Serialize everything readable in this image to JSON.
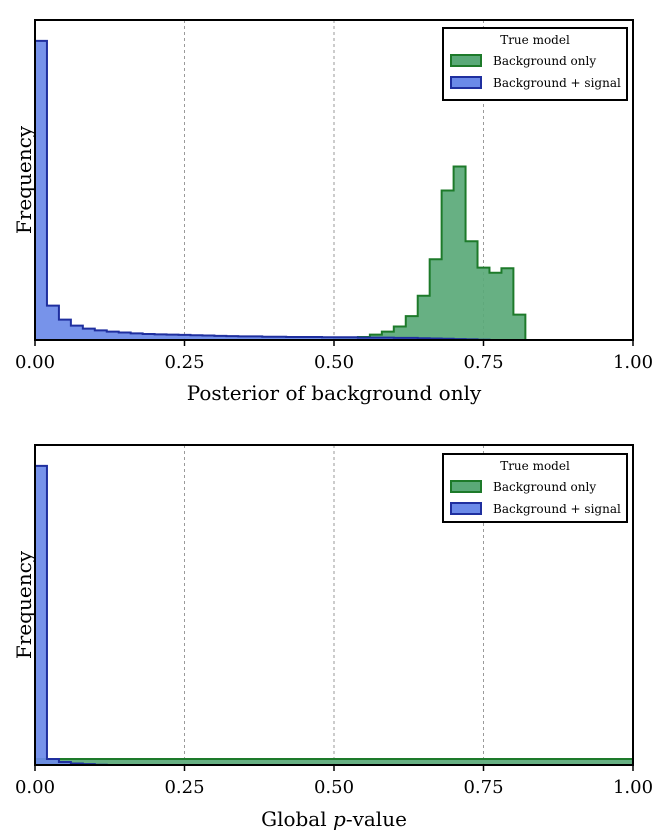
{
  "chart_data": [
    {
      "type": "area",
      "panel": "top",
      "xlabel": "Posterior of background only",
      "ylabel": "Frequency",
      "xlim": [
        0.0,
        1.0
      ],
      "ylim": [
        0,
        1.07
      ],
      "xticks": [
        "0.00",
        "0.25",
        "0.50",
        "0.75",
        "1.00"
      ],
      "yticks": [],
      "grid": "vertical dashed at 0.25, 0.50, 0.75",
      "legend_placement": "top-right",
      "legend": {
        "title": "True model",
        "entries": [
          "Background only",
          "Background + signal"
        ]
      },
      "colors": {
        "bg_fill": "#5aa978",
        "bg_edge": "#1d7a2a",
        "sig_fill": "#6b8ae8",
        "sig_edge": "#1f2f9f"
      },
      "bin_width": 0.02,
      "series": [
        {
          "name": "Background only",
          "x": [
            0.0,
            0.02,
            0.04,
            0.06,
            0.08,
            0.1,
            0.12,
            0.14,
            0.16,
            0.18,
            0.2,
            0.22,
            0.24,
            0.26,
            0.28,
            0.3,
            0.32,
            0.34,
            0.36,
            0.38,
            0.4,
            0.42,
            0.44,
            0.46,
            0.48,
            0.5,
            0.52,
            0.54,
            0.56,
            0.58,
            0.6,
            0.62,
            0.64,
            0.66,
            0.68,
            0.7,
            0.72,
            0.74,
            0.76,
            0.78,
            0.8
          ],
          "values": [
            0,
            0,
            0,
            0,
            0,
            0,
            0,
            0,
            0,
            0,
            0,
            0,
            0,
            0,
            0,
            0,
            0,
            0,
            0,
            0,
            0,
            0,
            0,
            0,
            0,
            0.003,
            0.006,
            0.01,
            0.018,
            0.028,
            0.045,
            0.08,
            0.148,
            0.27,
            0.5,
            0.58,
            0.33,
            0.242,
            0.225,
            0.24,
            0.085
          ]
        },
        {
          "name": "Background + signal",
          "x": [
            0.0,
            0.02,
            0.04,
            0.06,
            0.08,
            0.1,
            0.12,
            0.14,
            0.16,
            0.18,
            0.2,
            0.22,
            0.24,
            0.26,
            0.28,
            0.3,
            0.32,
            0.34,
            0.36,
            0.38,
            0.4,
            0.42,
            0.44,
            0.46,
            0.48,
            0.5,
            0.52,
            0.54,
            0.56,
            0.58,
            0.6,
            0.62,
            0.64,
            0.66,
            0.68,
            0.7,
            0.72,
            0.74,
            0.76,
            0.78
          ],
          "values": [
            1.0,
            0.115,
            0.068,
            0.048,
            0.038,
            0.032,
            0.028,
            0.025,
            0.022,
            0.02,
            0.019,
            0.018,
            0.017,
            0.016,
            0.015,
            0.014,
            0.013,
            0.012,
            0.012,
            0.011,
            0.011,
            0.01,
            0.01,
            0.01,
            0.009,
            0.009,
            0.009,
            0.008,
            0.008,
            0.008,
            0.007,
            0.007,
            0.006,
            0.005,
            0.004,
            0.003,
            0.002,
            0.001,
            0.0,
            0.0
          ]
        }
      ]
    },
    {
      "type": "area",
      "panel": "bottom",
      "xlabel_prefix": "Global ",
      "xlabel_italic": "p",
      "xlabel_suffix": "-value",
      "ylabel": "Frequency",
      "xlim": [
        0.0,
        1.0
      ],
      "ylim": [
        0,
        1.07
      ],
      "xticks": [
        "0.00",
        "0.25",
        "0.50",
        "0.75",
        "1.00"
      ],
      "yticks": [],
      "grid": "vertical dashed at 0.25, 0.50, 0.75",
      "legend_placement": "top-right",
      "legend": {
        "title": "True model",
        "entries": [
          "Background only",
          "Background + signal"
        ]
      },
      "colors": {
        "bg_fill": "#5aa978",
        "bg_edge": "#1d7a2a",
        "sig_fill": "#6b8ae8",
        "sig_edge": "#1f2f9f"
      },
      "bin_width": 0.02,
      "series": [
        {
          "name": "Background only",
          "x": [
            0.0,
            0.02,
            0.04,
            0.06,
            0.08,
            0.1,
            0.12,
            0.14,
            0.16,
            0.18,
            0.2,
            0.22,
            0.24,
            0.26,
            0.28,
            0.3,
            0.32,
            0.34,
            0.36,
            0.38,
            0.4,
            0.42,
            0.44,
            0.46,
            0.48,
            0.5,
            0.52,
            0.54,
            0.56,
            0.58,
            0.6,
            0.62,
            0.64,
            0.66,
            0.68,
            0.7,
            0.72,
            0.74,
            0.76,
            0.78,
            0.8,
            0.82,
            0.84,
            0.86,
            0.88,
            0.9,
            0.92,
            0.94,
            0.96,
            0.98
          ],
          "values": [
            0.02,
            0.02,
            0.02,
            0.02,
            0.02,
            0.02,
            0.02,
            0.02,
            0.02,
            0.02,
            0.02,
            0.02,
            0.02,
            0.02,
            0.02,
            0.02,
            0.02,
            0.02,
            0.02,
            0.02,
            0.02,
            0.02,
            0.02,
            0.02,
            0.02,
            0.02,
            0.02,
            0.02,
            0.02,
            0.02,
            0.02,
            0.02,
            0.02,
            0.02,
            0.02,
            0.02,
            0.02,
            0.02,
            0.02,
            0.02,
            0.02,
            0.02,
            0.02,
            0.02,
            0.02,
            0.02,
            0.02,
            0.02,
            0.02,
            0.02
          ]
        },
        {
          "name": "Background + signal",
          "x": [
            0.0,
            0.02,
            0.04,
            0.06,
            0.08,
            0.1,
            0.12
          ],
          "values": [
            1.0,
            0.02,
            0.01,
            0.005,
            0.003,
            0.001,
            0.0
          ]
        }
      ]
    }
  ]
}
